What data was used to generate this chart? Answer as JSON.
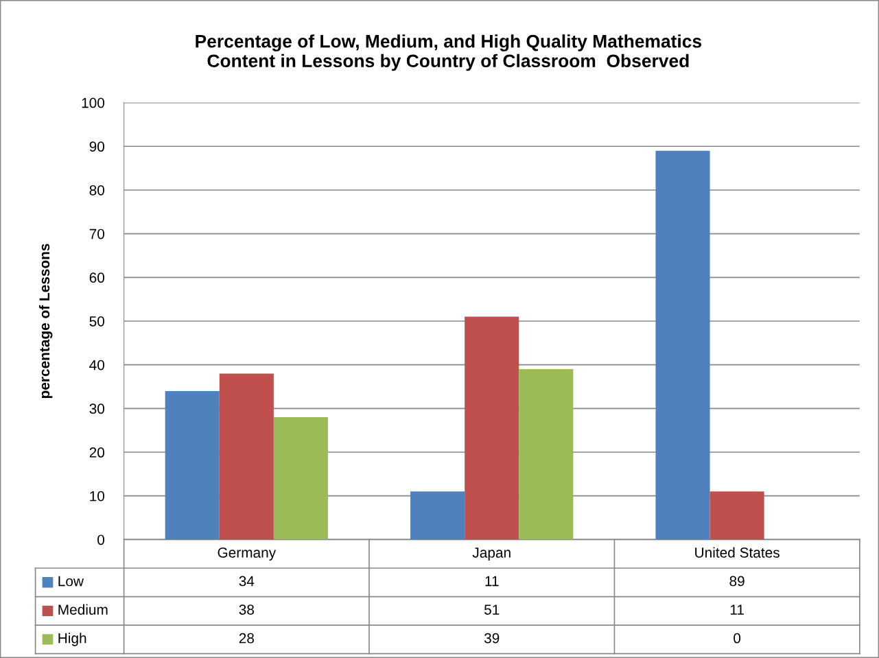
{
  "chart_data": {
    "type": "bar",
    "title": "Percentage of Low, Medium, and High Quality Mathematics\nContent in Lessons by Country of Classroom  Observed",
    "ylabel": "percentage of Lessons",
    "categories": [
      "Germany",
      "Japan",
      "United States"
    ],
    "series": [
      {
        "name": "Low",
        "color": "#4f81bd",
        "values": [
          34,
          11,
          89
        ]
      },
      {
        "name": "Medium",
        "color": "#c0504d",
        "values": [
          38,
          51,
          11
        ]
      },
      {
        "name": "High",
        "color": "#9bbb59",
        "values": [
          28,
          39,
          0
        ]
      }
    ],
    "ylim": [
      0,
      100
    ],
    "yticks": [
      0,
      10,
      20,
      30,
      40,
      50,
      60,
      70,
      80,
      90,
      100
    ],
    "grid": "y",
    "data_labels": true,
    "legend": "bottom left"
  }
}
